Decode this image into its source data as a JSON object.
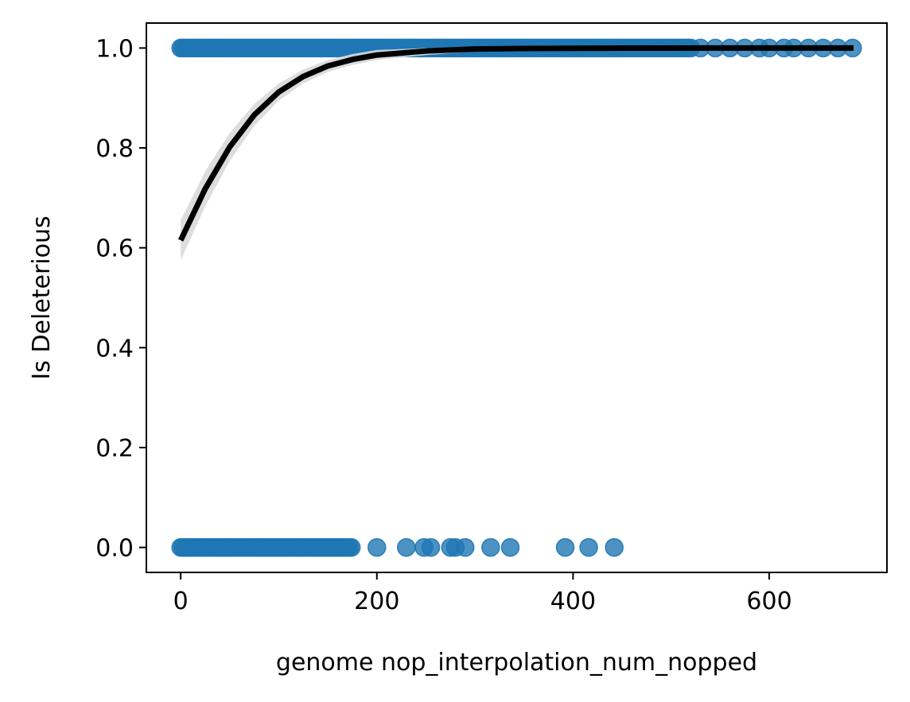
{
  "chart_data": {
    "type": "scatter",
    "title": "",
    "xlabel": "genome nop_interpolation_num_nopped",
    "ylabel": "Is Deleterious",
    "xlim": [
      -35,
      720
    ],
    "ylim": [
      -0.05,
      1.05
    ],
    "xticks": [
      0,
      200,
      400,
      600
    ],
    "yticks": [
      0.0,
      0.2,
      0.4,
      0.6,
      0.8,
      1.0
    ],
    "xtick_labels": [
      "0",
      "200",
      "400",
      "600"
    ],
    "ytick_labels": [
      "0.0",
      "0.2",
      "0.4",
      "0.6",
      "0.8",
      "1.0"
    ],
    "grid": false,
    "colors": {
      "points": "#1f77b4",
      "fit_line": "#000000",
      "confidence_band": "#d9d9d9"
    },
    "series": [
      {
        "kind": "points",
        "y": 1,
        "x_dense_range": [
          0,
          520
        ],
        "x_sparse": [
          530,
          545,
          560,
          575,
          590,
          600,
          615,
          625,
          640,
          655,
          670,
          685
        ]
      },
      {
        "kind": "points",
        "y": 0,
        "x_dense_range": [
          0,
          175
        ],
        "x_sparse": [
          200,
          230,
          248,
          255,
          275,
          280,
          290,
          316,
          336,
          392,
          416,
          442
        ]
      },
      {
        "kind": "fit",
        "model": "logistic",
        "x": [
          0,
          25,
          50,
          75,
          100,
          125,
          150,
          175,
          200,
          250,
          300,
          350,
          400,
          450,
          500,
          550,
          600,
          650,
          686
        ],
        "y": [
          0.615,
          0.718,
          0.802,
          0.866,
          0.912,
          0.943,
          0.964,
          0.977,
          0.986,
          0.994,
          0.998,
          0.999,
          0.9995,
          0.9998,
          0.9999,
          1.0,
          1.0,
          1.0,
          1.0
        ],
        "ci_halfwidth": [
          0.04,
          0.035,
          0.028,
          0.022,
          0.017,
          0.014,
          0.012,
          0.011,
          0.01,
          0.008,
          0.005,
          0.003,
          0.002,
          0.001,
          0.001,
          0.0,
          0.0,
          0.0,
          0.0
        ]
      }
    ]
  }
}
